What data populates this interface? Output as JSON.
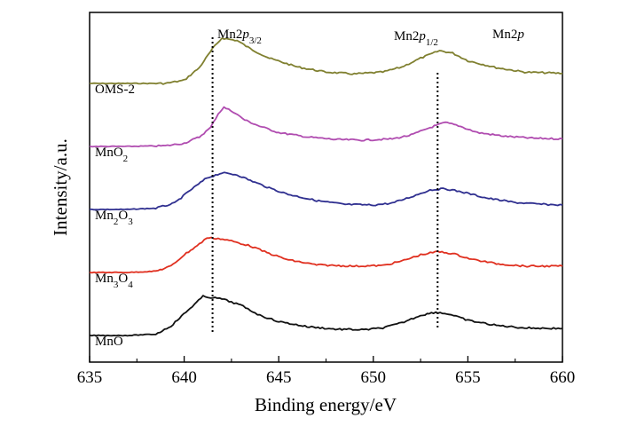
{
  "chart_data": {
    "type": "line",
    "title": "",
    "xlabel": "Binding energy/eV",
    "ylabel": "Intensity/a.u.",
    "xlim": [
      635,
      660
    ],
    "x_ticks": [
      635,
      640,
      645,
      650,
      655,
      660
    ],
    "y_ticks": "none",
    "grid": false,
    "legend": "none",
    "annotations": [
      {
        "id": "p32",
        "base": "Mn2",
        "italic": "p",
        "sub": "3/2",
        "x": 641.5,
        "line": "dotted-vertical"
      },
      {
        "id": "p12",
        "base": "Mn2",
        "italic": "p",
        "sub": "1/2",
        "x": 653.4,
        "line": "dotted-vertical"
      },
      {
        "id": "region",
        "base": "Mn2",
        "italic": "p",
        "sub": ""
      }
    ],
    "series": [
      {
        "name": "OMS-2",
        "label_parts": [
          {
            "t": "OMS-2",
            "sub": false
          }
        ],
        "color": "#808030",
        "offset": 4.0,
        "points": [
          [
            635,
            0.0
          ],
          [
            637,
            0.0
          ],
          [
            639,
            0.0
          ],
          [
            640,
            0.05
          ],
          [
            640.8,
            0.25
          ],
          [
            641.5,
            0.55
          ],
          [
            642.0,
            0.72
          ],
          [
            642.8,
            0.68
          ],
          [
            643.5,
            0.55
          ],
          [
            644.5,
            0.4
          ],
          [
            646,
            0.26
          ],
          [
            647.5,
            0.18
          ],
          [
            649,
            0.15
          ],
          [
            650.5,
            0.18
          ],
          [
            651.5,
            0.26
          ],
          [
            652.5,
            0.4
          ],
          [
            653.5,
            0.52
          ],
          [
            654.2,
            0.48
          ],
          [
            655,
            0.36
          ],
          [
            656.5,
            0.25
          ],
          [
            658,
            0.18
          ],
          [
            660,
            0.16
          ]
        ]
      },
      {
        "name": "MnO2",
        "label_parts": [
          {
            "t": "MnO",
            "sub": false
          },
          {
            "t": "2",
            "sub": true
          }
        ],
        "color": "#b04cb0",
        "offset": 3.0,
        "points": [
          [
            635,
            0.0
          ],
          [
            637,
            0.0
          ],
          [
            639,
            0.01
          ],
          [
            640,
            0.05
          ],
          [
            640.8,
            0.15
          ],
          [
            641.4,
            0.3
          ],
          [
            641.8,
            0.52
          ],
          [
            642.1,
            0.62
          ],
          [
            642.6,
            0.55
          ],
          [
            643.2,
            0.42
          ],
          [
            644,
            0.32
          ],
          [
            645,
            0.22
          ],
          [
            646.5,
            0.15
          ],
          [
            648,
            0.11
          ],
          [
            649.5,
            0.1
          ],
          [
            651,
            0.12
          ],
          [
            652,
            0.18
          ],
          [
            653,
            0.3
          ],
          [
            653.8,
            0.38
          ],
          [
            654.5,
            0.33
          ],
          [
            655.5,
            0.22
          ],
          [
            657,
            0.16
          ],
          [
            658.5,
            0.13
          ],
          [
            660,
            0.12
          ]
        ]
      },
      {
        "name": "Mn2O3",
        "label_parts": [
          {
            "t": "Mn",
            "sub": false
          },
          {
            "t": "2",
            "sub": true
          },
          {
            "t": "O",
            "sub": false
          },
          {
            "t": "3",
            "sub": true
          }
        ],
        "color": "#303090",
        "offset": 2.0,
        "points": [
          [
            635,
            0.0
          ],
          [
            637,
            0.0
          ],
          [
            638.5,
            0.02
          ],
          [
            639.5,
            0.1
          ],
          [
            640.3,
            0.3
          ],
          [
            641.2,
            0.5
          ],
          [
            642,
            0.58
          ],
          [
            642.8,
            0.55
          ],
          [
            643.5,
            0.46
          ],
          [
            644.5,
            0.34
          ],
          [
            645.5,
            0.24
          ],
          [
            647,
            0.14
          ],
          [
            648.5,
            0.08
          ],
          [
            650,
            0.07
          ],
          [
            651,
            0.1
          ],
          [
            652,
            0.2
          ],
          [
            653,
            0.31
          ],
          [
            653.8,
            0.33
          ],
          [
            654.8,
            0.27
          ],
          [
            656,
            0.18
          ],
          [
            657.5,
            0.11
          ],
          [
            659,
            0.08
          ],
          [
            660,
            0.07
          ]
        ]
      },
      {
        "name": "Mn3O4",
        "label_parts": [
          {
            "t": "Mn",
            "sub": false
          },
          {
            "t": "3",
            "sub": true
          },
          {
            "t": "O",
            "sub": false
          },
          {
            "t": "4",
            "sub": true
          }
        ],
        "color": "#e03020",
        "offset": 1.0,
        "points": [
          [
            635,
            0.0
          ],
          [
            637,
            0.0
          ],
          [
            638.5,
            0.02
          ],
          [
            639.3,
            0.1
          ],
          [
            640,
            0.28
          ],
          [
            640.8,
            0.45
          ],
          [
            641.2,
            0.55
          ],
          [
            641.8,
            0.54
          ],
          [
            642.5,
            0.5
          ],
          [
            643.5,
            0.42
          ],
          [
            644.5,
            0.3
          ],
          [
            645.5,
            0.2
          ],
          [
            647,
            0.12
          ],
          [
            649,
            0.1
          ],
          [
            650.5,
            0.11
          ],
          [
            651.5,
            0.18
          ],
          [
            652.5,
            0.28
          ],
          [
            653.4,
            0.33
          ],
          [
            654.2,
            0.3
          ],
          [
            655.2,
            0.21
          ],
          [
            656.5,
            0.14
          ],
          [
            658,
            0.1
          ],
          [
            660,
            0.1
          ]
        ]
      },
      {
        "name": "MnO",
        "label_parts": [
          {
            "t": "MnO",
            "sub": false
          }
        ],
        "color": "#111111",
        "offset": 0.0,
        "points": [
          [
            635,
            0.0
          ],
          [
            637,
            0.0
          ],
          [
            638.5,
            0.02
          ],
          [
            639.3,
            0.15
          ],
          [
            640.2,
            0.4
          ],
          [
            641,
            0.62
          ],
          [
            641.5,
            0.6
          ],
          [
            642,
            0.58
          ],
          [
            643,
            0.48
          ],
          [
            644,
            0.32
          ],
          [
            645,
            0.22
          ],
          [
            646.5,
            0.14
          ],
          [
            648,
            0.1
          ],
          [
            649.5,
            0.09
          ],
          [
            650.5,
            0.12
          ],
          [
            651.5,
            0.2
          ],
          [
            652.5,
            0.32
          ],
          [
            653.3,
            0.37
          ],
          [
            654,
            0.34
          ],
          [
            655,
            0.24
          ],
          [
            656.5,
            0.16
          ],
          [
            658,
            0.12
          ],
          [
            660,
            0.11
          ]
        ]
      }
    ]
  }
}
